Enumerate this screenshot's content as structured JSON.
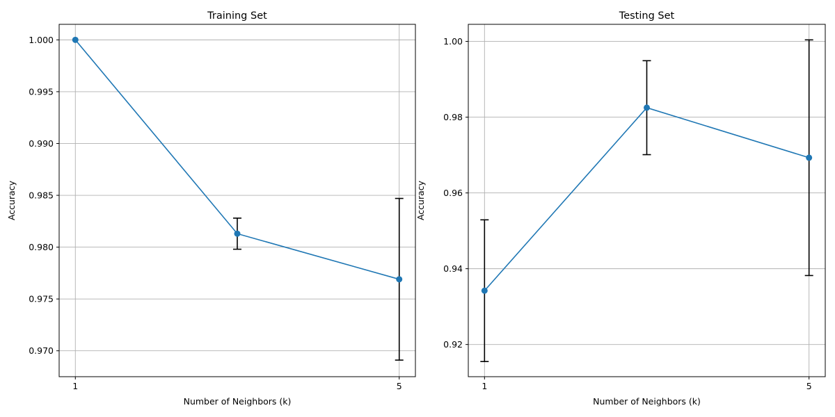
{
  "chart_data": [
    {
      "type": "line",
      "title": "Training Set",
      "xlabel": "Number of Neighbors (k)",
      "ylabel": "Accuracy",
      "x": [
        1,
        3,
        5
      ],
      "y": [
        1.0,
        0.9813,
        0.9769
      ],
      "yerr": [
        0.0,
        0.0015,
        0.0078
      ],
      "xticks": [
        1,
        5
      ],
      "yticks": [
        0.97,
        0.975,
        0.98,
        0.985,
        0.99,
        0.995,
        1.0
      ],
      "ytick_labels": [
        "0.970",
        "0.975",
        "0.980",
        "0.985",
        "0.990",
        "0.995",
        "1.000"
      ],
      "xlim": [
        0.8,
        5.2
      ],
      "ylim": [
        0.9675,
        1.0015
      ],
      "grid": true,
      "marker": "circle",
      "color": "#1f77b4",
      "errorbar_color": "#000000"
    },
    {
      "type": "line",
      "title": "Testing Set",
      "xlabel": "Number of Neighbors (k)",
      "ylabel": "Accuracy",
      "x": [
        1,
        3,
        5
      ],
      "y": [
        0.9342,
        0.9825,
        0.9693
      ],
      "yerr": [
        0.0187,
        0.0124,
        0.0311
      ],
      "xticks": [
        1,
        5
      ],
      "yticks": [
        0.92,
        0.94,
        0.96,
        0.98,
        1.0
      ],
      "ytick_labels": [
        "0.92",
        "0.94",
        "0.96",
        "0.98",
        "1.00"
      ],
      "xlim": [
        0.8,
        5.2
      ],
      "ylim": [
        0.9115,
        1.0045
      ],
      "grid": true,
      "marker": "circle",
      "color": "#1f77b4",
      "errorbar_color": "#000000"
    }
  ]
}
